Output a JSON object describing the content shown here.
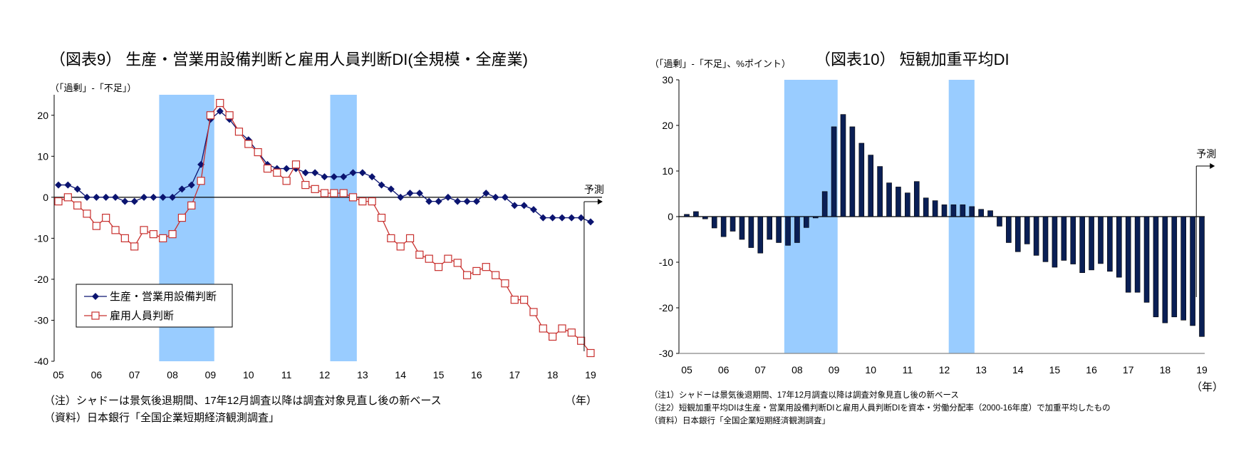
{
  "colors": {
    "series_equipment": "#0b1470",
    "series_employment": "#c8302e",
    "shading": "#99ccff",
    "bars": "#0a1f55",
    "axis": "#000000"
  },
  "chart_data": [
    {
      "type": "line",
      "title": "（図表9） 生産・営業用設備判断と雇用人員判断DI(全規模・全産業)",
      "ylabel": "（「過剰」-「不足」）",
      "xlabel": "（年）",
      "ylim": [
        -40,
        25
      ],
      "yticks": [
        20,
        10,
        0,
        -10,
        -20,
        -30,
        -40
      ],
      "xtick_labels": [
        "05",
        "06",
        "07",
        "08",
        "09",
        "10",
        "11",
        "12",
        "13",
        "14",
        "15",
        "16",
        "17",
        "18",
        "19"
      ],
      "x_start": "2005Q1",
      "frequency": "quarterly",
      "grid": false,
      "legend_position": "bottom-left",
      "shading": [
        [
          2007.65,
          2009.1
        ],
        [
          2012.15,
          2012.85
        ]
      ],
      "forecast": {
        "label": "予測",
        "from": 2018.83
      },
      "series": [
        {
          "name": "生産・営業用設備判断",
          "marker": "diamond",
          "values": [
            3,
            3,
            2,
            0,
            0,
            0,
            0,
            -1,
            -1,
            0,
            0,
            0,
            0,
            2,
            3,
            8,
            19,
            21,
            19,
            16,
            14,
            11,
            8,
            7,
            7,
            7,
            6,
            6,
            5,
            5,
            5,
            6,
            6,
            5,
            3,
            2,
            0,
            1,
            1,
            -1,
            -1,
            0,
            -1,
            -1,
            -1,
            1,
            0,
            0,
            -2,
            -2,
            -3,
            -5,
            -5,
            -5,
            -5,
            -5,
            -6
          ]
        },
        {
          "name": "雇用人員判断",
          "marker": "open-square",
          "values": [
            -1,
            0,
            -2,
            -4,
            -7,
            -5,
            -8,
            -10,
            -12,
            -8,
            -9,
            -10,
            -9,
            -5,
            -2,
            4,
            20,
            23,
            20,
            16,
            13,
            11,
            7,
            6,
            4,
            8,
            3,
            2,
            1,
            1,
            1,
            0,
            -1,
            -1,
            -5,
            -10,
            -12,
            -10,
            -14,
            -15,
            -17,
            -15,
            -16,
            -19,
            -18,
            -17,
            -19,
            -21,
            -25,
            -25,
            -28,
            -32,
            -34,
            -32,
            -33,
            -35,
            -38
          ]
        }
      ],
      "notes": [
        "（注）シャドーは景気後退期間、17年12月調査以降は調査対象見直し後の新ベース",
        "（資料）日本銀行「全国企業短期経済観測調査」"
      ]
    },
    {
      "type": "bar",
      "title": "（図表10） 短観加重平均DI",
      "ylabel": "（「過剰」-「不足」、%ポイント）",
      "xlabel": "（年）",
      "ylim": [
        -30,
        30
      ],
      "yticks": [
        30,
        20,
        10,
        0,
        -10,
        -20,
        -30
      ],
      "xtick_labels": [
        "05",
        "06",
        "07",
        "08",
        "09",
        "10",
        "11",
        "12",
        "13",
        "14",
        "15",
        "16",
        "17",
        "18",
        "19"
      ],
      "x_start": "2005Q1",
      "frequency": "quarterly",
      "grid": false,
      "shading": [
        [
          2007.65,
          2009.1
        ],
        [
          2012.12,
          2012.82
        ]
      ],
      "forecast": {
        "label": "予測",
        "from": 2018.85
      },
      "series": [
        {
          "values": [
            0.5,
            1.1,
            -0.5,
            -2.5,
            -4.4,
            -3.2,
            -5.0,
            -6.8,
            -8.0,
            -5.0,
            -5.7,
            -6.3,
            -5.7,
            -2.4,
            -0.3,
            5.5,
            19.7,
            22.4,
            19.7,
            16.1,
            13.5,
            11.0,
            7.4,
            6.5,
            5.2,
            7.7,
            4.1,
            3.5,
            2.6,
            2.6,
            2.6,
            2.2,
            1.6,
            1.3,
            -2.1,
            -5.7,
            -7.7,
            -6.0,
            -8.5,
            -9.9,
            -11.1,
            -9.6,
            -10.4,
            -12.3,
            -11.7,
            -10.3,
            -12.0,
            -13.3,
            -16.6,
            -16.6,
            -18.8,
            -22.0,
            -23.3,
            -22.0,
            -22.7,
            -23.9,
            -26.3
          ]
        }
      ],
      "notes": [
        "（注1）シャドーは景気後退期間、17年12月調査以降は調査対象見直し後の新ベース",
        "（注2）短観加重平均DIは生産・営業用設備判断DIと雇用人員判断DIを資本・労働分配率（2000-16年度）で加重平均したもの",
        "（資料）日本銀行「全国企業短期経済観測調査」"
      ]
    }
  ]
}
